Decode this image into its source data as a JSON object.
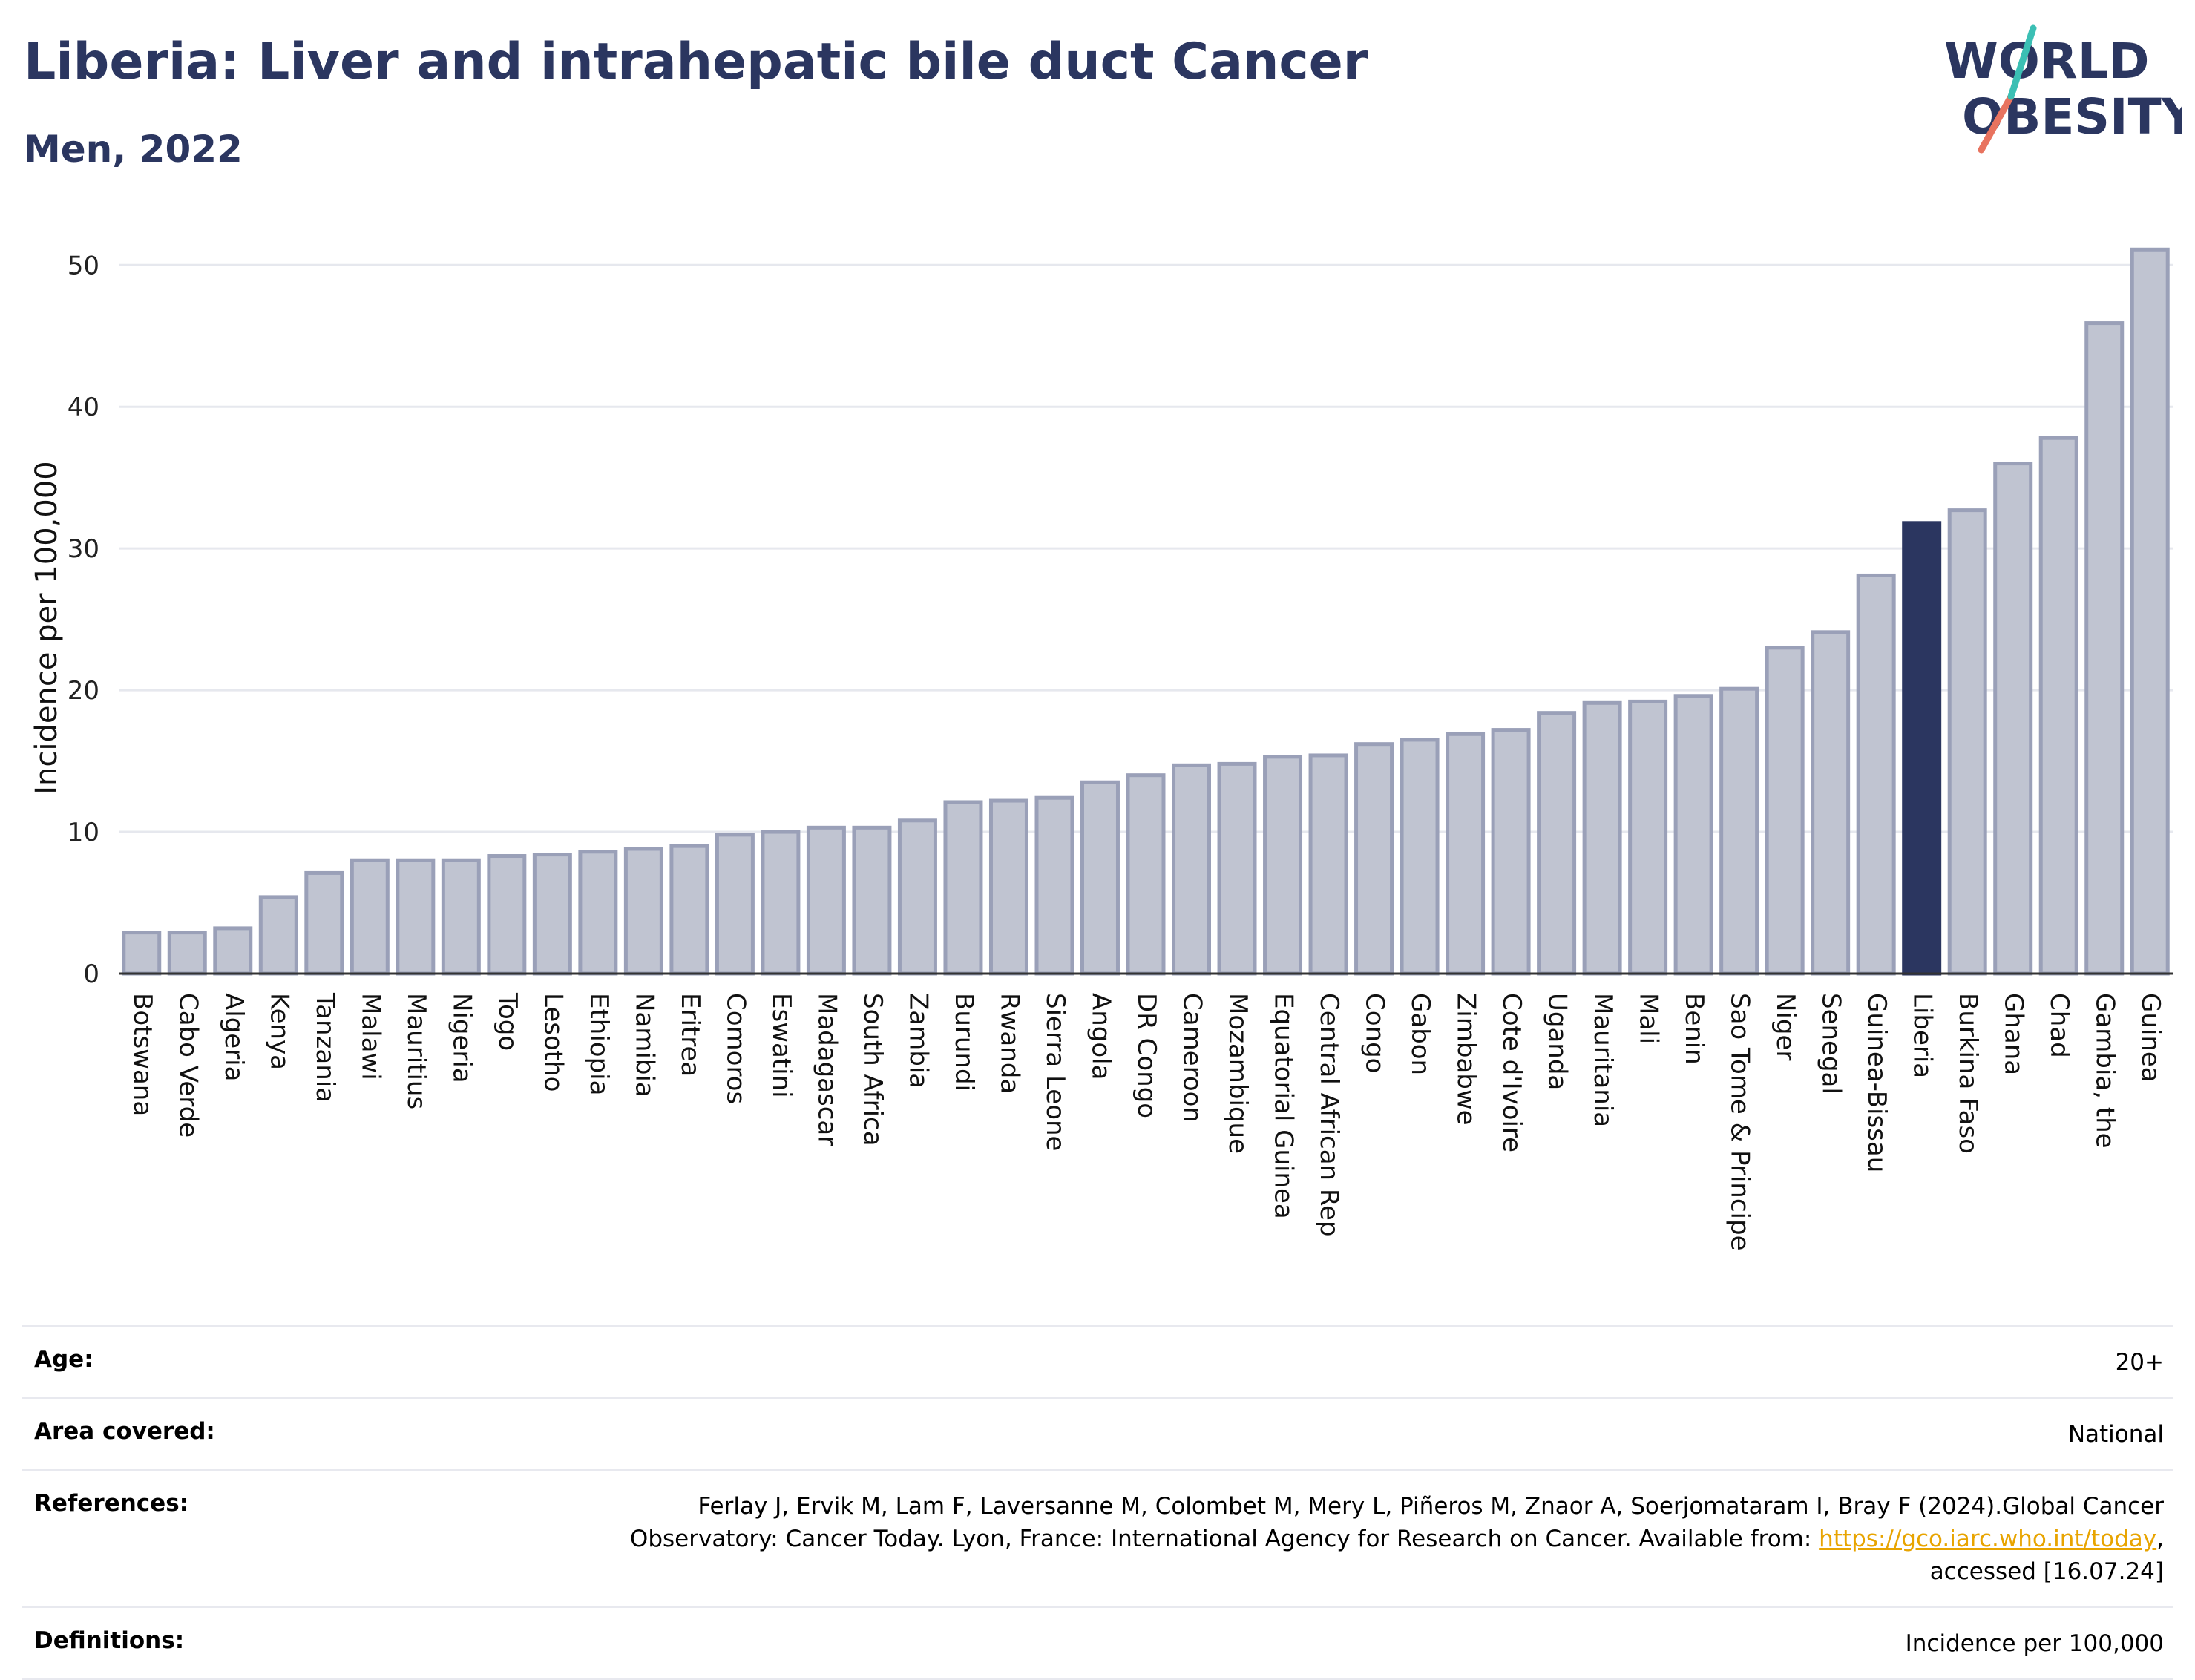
{
  "title": "Liberia: Liver and intrahepatic bile duct Cancer",
  "subtitle": "Men, 2022",
  "logo": {
    "line1": "WORLD",
    "line2": "OBESITY"
  },
  "colors": {
    "bar": "#c0c4d1",
    "bar_stroke": "#9aa0b8",
    "highlight": "#2b3660",
    "grid": "#e6e8ee",
    "link": "#e8a400"
  },
  "chart_data": {
    "type": "bar",
    "ylabel": "Incidence per 100,000",
    "ylim": [
      0,
      53
    ],
    "yticks": [
      0,
      10,
      20,
      30,
      40,
      50
    ],
    "grid": true,
    "highlight": "Liberia",
    "categories": [
      "Botswana",
      "Cabo Verde",
      "Algeria",
      "Kenya",
      "Tanzania",
      "Malawi",
      "Mauritius",
      "Nigeria",
      "Togo",
      "Lesotho",
      "Ethiopia",
      "Namibia",
      "Eritrea",
      "Comoros",
      "Eswatini",
      "Madagascar",
      "South Africa",
      "Zambia",
      "Burundi",
      "Rwanda",
      "Sierra Leone",
      "Angola",
      "DR Congo",
      "Cameroon",
      "Mozambique",
      "Equatorial Guinea",
      "Central African Rep",
      "Congo",
      "Gabon",
      "Zimbabwe",
      "Cote d'Ivoire",
      "Uganda",
      "Mauritania",
      "Mali",
      "Benin",
      "Sao Tome & Principe",
      "Niger",
      "Senegal",
      "Guinea-Bissau",
      "Liberia",
      "Burkina Faso",
      "Ghana",
      "Chad",
      "Gambia, the",
      "Guinea"
    ],
    "values": [
      2.9,
      2.9,
      3.2,
      5.4,
      7.1,
      8.0,
      8.0,
      8.0,
      8.3,
      8.4,
      8.6,
      8.8,
      9.0,
      9.8,
      10.0,
      10.3,
      10.3,
      10.8,
      12.1,
      12.2,
      12.4,
      13.5,
      14.0,
      14.7,
      14.8,
      15.3,
      15.4,
      16.2,
      16.5,
      16.9,
      17.2,
      18.4,
      19.1,
      19.2,
      19.6,
      20.1,
      23.0,
      24.1,
      28.1,
      31.8,
      32.7,
      36.0,
      37.8,
      45.9,
      51.1
    ]
  },
  "info": {
    "age_label": "Age:",
    "age_value": "20+",
    "area_label": "Area covered:",
    "area_value": "National",
    "ref_label": "References:",
    "ref_text1": "Ferlay J, Ervik M, Lam F, Laversanne M, Colombet M, Mery L, Piñeros M, Znaor A, Soerjomataram I, Bray F (2024).Global Cancer",
    "ref_text2": "Observatory: Cancer Today. Lyon, France: International Agency for Research on Cancer. Available from: ",
    "ref_link": "https://gco.iarc.who.int/today",
    "ref_text3": ",",
    "ref_text4": "accessed [16.07.24]",
    "def_label": "Definitions:",
    "def_value": "Incidence per 100,000"
  }
}
